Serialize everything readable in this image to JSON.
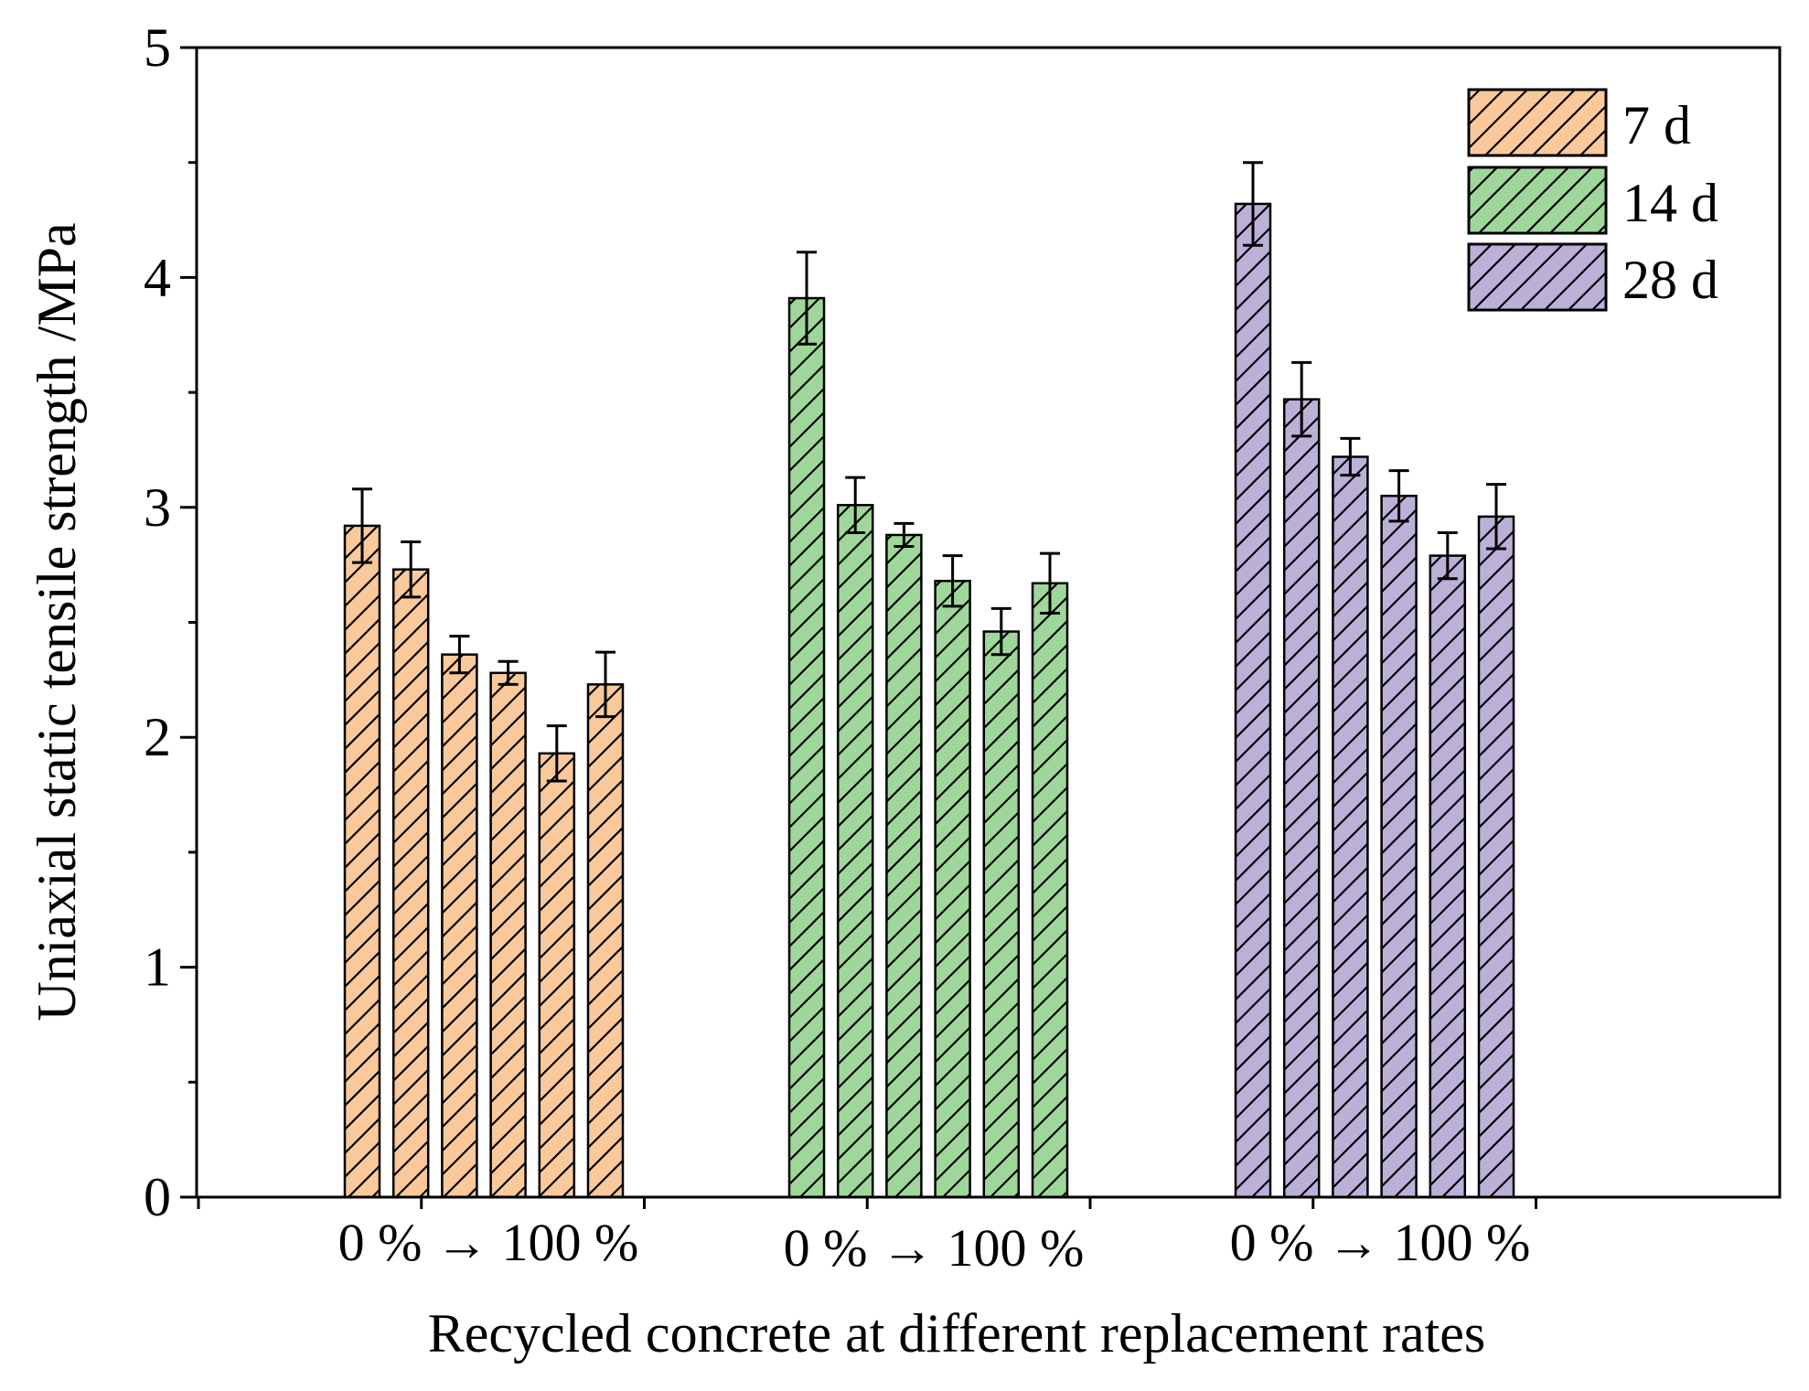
{
  "chart_data": {
    "type": "bar",
    "title": "",
    "xlabel": "Recycled concrete at different replacement rates",
    "ylabel": "Uniaxial static tensile strength /MPa",
    "ylim": [
      0,
      5
    ],
    "yticks": [
      "0",
      "1",
      "2",
      "3",
      "4",
      "5"
    ],
    "category_labels": [
      "0 % → 100 %",
      "0 % → 100 %",
      "0 % → 100 %"
    ],
    "bar_pattern": "diagonal-hatch",
    "legend_position": "top-right",
    "series": [
      {
        "name": "7 d",
        "color": "#f9c99b",
        "values": [
          2.92,
          2.73,
          2.36,
          2.28,
          1.93,
          2.23
        ],
        "errors": [
          0.16,
          0.12,
          0.08,
          0.05,
          0.12,
          0.14
        ]
      },
      {
        "name": "14 d",
        "color": "#9fd79a",
        "values": [
          3.91,
          3.01,
          2.88,
          2.68,
          2.46,
          2.67
        ],
        "errors": [
          0.2,
          0.12,
          0.05,
          0.11,
          0.1,
          0.13
        ]
      },
      {
        "name": "28 d",
        "color": "#bcb0d8",
        "values": [
          4.32,
          3.47,
          3.22,
          3.05,
          2.79,
          2.96
        ],
        "errors": [
          0.18,
          0.16,
          0.08,
          0.11,
          0.1,
          0.14
        ]
      }
    ]
  }
}
